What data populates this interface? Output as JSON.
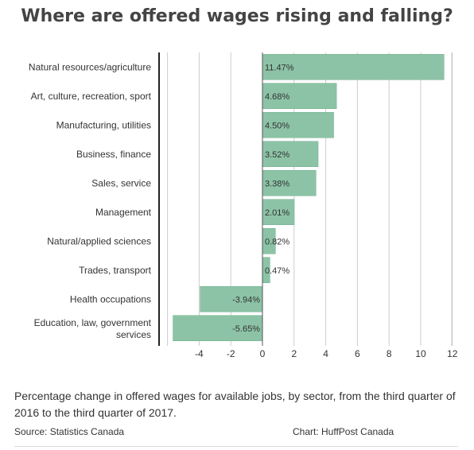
{
  "title": "Where are offered wages rising and falling?",
  "caption": "Percentage change in offered wages for available jobs, by sector, from the third quarter of 2016 to the third quarter of 2017.",
  "source": "Source: Statistics Canada",
  "credit": "Chart: HuffPost Canada",
  "colors": {
    "bar": "#8cc3a6",
    "bar_stroke": "#6fae8d",
    "grid": "#cccccc",
    "baseline": "#222222"
  },
  "chart_data": {
    "type": "bar",
    "orientation": "horizontal",
    "categories": [
      "Natural resources/agriculture",
      "Art, culture, recreation, sport",
      "Manufacturing, utilities",
      "Business, finance",
      "Sales, service",
      "Management",
      "Natural/applied sciences",
      "Trades, transport",
      "Health occupations",
      "Education, law, government services"
    ],
    "values": [
      11.47,
      4.68,
      4.5,
      3.52,
      3.38,
      2.01,
      0.82,
      0.47,
      -3.94,
      -5.65
    ],
    "value_labels": [
      "11.47%",
      "4.68%",
      "4.50%",
      "3.52%",
      "3.38%",
      "2.01%",
      "0.82%",
      "0.47%",
      "-3.94%",
      "-5.65%"
    ],
    "xticks": [
      -4,
      -2,
      0,
      2,
      4,
      6,
      8,
      10,
      12
    ],
    "xlim": [
      -6,
      12.4
    ],
    "grid": true
  }
}
